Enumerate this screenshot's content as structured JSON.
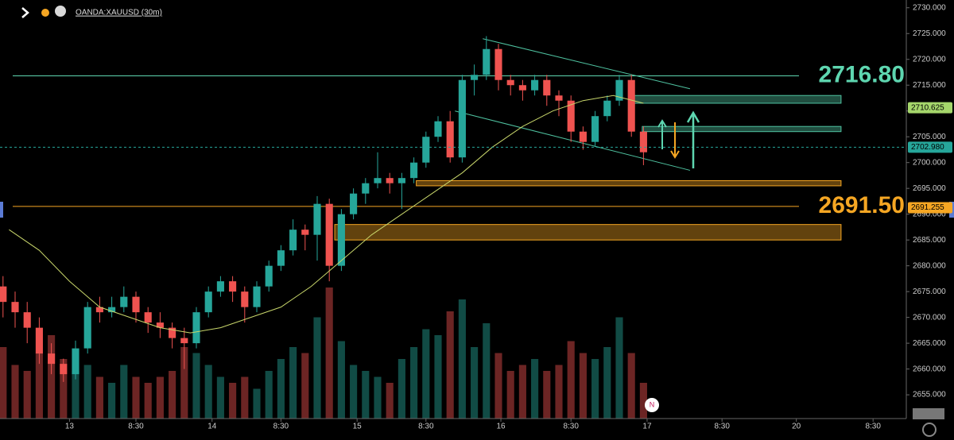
{
  "header": {
    "symbol": "OANDA:XAUUSD (30m)"
  },
  "chart_data": {
    "type": "candlestick",
    "up_color": "#26a69a",
    "down_color": "#ef5350",
    "x": [
      -11,
      -9,
      -7,
      -5,
      -3,
      -1,
      1,
      3,
      5,
      7,
      9,
      11,
      13,
      15,
      17,
      19,
      21,
      23,
      25,
      27,
      29,
      31,
      33,
      35,
      37,
      39,
      41,
      43,
      45,
      47,
      49,
      51,
      53,
      55,
      57,
      59,
      61,
      63,
      65,
      67,
      69,
      71,
      73,
      75,
      77,
      79,
      81,
      83,
      85,
      87,
      89,
      91,
      93,
      95
    ],
    "open": [
      2676,
      2673,
      2671,
      2668,
      2663,
      2661,
      2659,
      2664,
      2672,
      2671,
      2672,
      2674,
      2671,
      2669,
      2668,
      2666,
      2665,
      2671,
      2675,
      2677,
      2675,
      2672,
      2676,
      2680,
      2683,
      2687,
      2686,
      2692,
      2680,
      2690,
      2694,
      2696,
      2697,
      2696,
      2697,
      2700,
      2705,
      2708,
      2701,
      2716,
      2717,
      2722,
      2716,
      2715,
      2714,
      2716,
      2713,
      2712,
      2706,
      2704,
      2709,
      2712,
      2716,
      2706
    ],
    "high": [
      2678,
      2675,
      2673,
      2670,
      2665,
      2662,
      2665.5,
      2673,
      2674,
      2674,
      2676,
      2675,
      2672,
      2671,
      2669,
      2668,
      2672,
      2676,
      2678,
      2678,
      2676,
      2677,
      2681,
      2684,
      2689,
      2688,
      2693.5,
      2693,
      2691,
      2695,
      2697,
      2702,
      2698,
      2698,
      2701,
      2706,
      2709,
      2710,
      2717,
      2719,
      2724.5,
      2723,
      2717,
      2716,
      2717,
      2717,
      2714,
      2713,
      2707,
      2710,
      2713,
      2717,
      2717,
      2707
    ],
    "low": [
      2670,
      2668,
      2665,
      2661,
      2659,
      2657.5,
      2658,
      2663,
      2669,
      2670,
      2671,
      2669,
      2667,
      2666,
      2664,
      2660,
      2664,
      2670,
      2674,
      2673,
      2669,
      2671,
      2675,
      2679,
      2682,
      2683,
      2681,
      2677,
      2679,
      2689,
      2692,
      2695,
      2694,
      2691,
      2696,
      2699,
      2704,
      2700,
      2700,
      2713,
      2716,
      2714,
      2713,
      2712,
      2713,
      2711,
      2709,
      2704,
      2702.5,
      2703,
      2708,
      2711,
      2705,
      2699.5
    ],
    "close": [
      2673,
      2671,
      2668,
      2663,
      2661,
      2659,
      2664,
      2672,
      2671,
      2672,
      2674,
      2671,
      2669,
      2668,
      2666,
      2665,
      2671,
      2675,
      2677,
      2675,
      2672,
      2676,
      2680,
      2683,
      2687,
      2686,
      2692,
      2680,
      2690,
      2694,
      2696,
      2697,
      2696,
      2697,
      2700,
      2705,
      2708,
      2701,
      2716,
      2717,
      2722,
      2716,
      2715,
      2714,
      2716,
      2713,
      2712,
      2706,
      2704,
      2709,
      2712,
      2716,
      2706,
      2702
    ],
    "volume": [
      60,
      45,
      40,
      55,
      70,
      50,
      40,
      45,
      35,
      30,
      45,
      35,
      30,
      35,
      40,
      60,
      55,
      45,
      35,
      30,
      35,
      25,
      40,
      50,
      60,
      55,
      85,
      110,
      65,
      45,
      40,
      35,
      30,
      50,
      60,
      75,
      70,
      90,
      100,
      60,
      80,
      55,
      40,
      45,
      50,
      40,
      45,
      65,
      55,
      50,
      60,
      85,
      55,
      30
    ],
    "ma": {
      "color": "#c8d66b",
      "x": [
        -10,
        -5,
        0,
        5,
        10,
        15,
        20,
        25,
        30,
        35,
        40,
        45,
        50,
        55,
        60,
        65,
        70,
        75,
        80,
        85,
        90,
        95
      ],
      "values": [
        2687,
        2683,
        2677,
        2672,
        2670,
        2668,
        2667,
        2668,
        2670,
        2672,
        2676,
        2681,
        2686,
        2690,
        2694,
        2698,
        2703,
        2707,
        2710,
        2712,
        2713,
        2711.5
      ]
    },
    "trendlines": [
      {
        "color": "#4fc3a1",
        "x": [
          68.4,
          102.7
        ],
        "y": [
          2724,
          2714.3
        ]
      },
      {
        "color": "#4fc3a1",
        "x": [
          63.8,
          102.7
        ],
        "y": [
          2710,
          2698.5
        ]
      }
    ],
    "zones": [
      {
        "x": [
          93.4,
          127.7
        ],
        "y": [
          2711.5,
          2713
        ],
        "color": "#4fc3a1"
      },
      {
        "x": [
          94.8,
          127.7
        ],
        "y": [
          2706,
          2707
        ],
        "color": "#4fc3a1"
      },
      {
        "x": [
          57.4,
          127.7
        ],
        "y": [
          2695.5,
          2696.5
        ],
        "color": "#f5a623"
      },
      {
        "x": [
          43.9,
          127.7
        ],
        "y": [
          2685,
          2688
        ],
        "color": "#f5a623"
      }
    ],
    "levels": [
      {
        "value": 2716.8,
        "label": "2716.80",
        "color": "#5ed6b0"
      },
      {
        "value": 2691.5,
        "label": "2691.50",
        "color": "#f5a623"
      }
    ],
    "price_tags": [
      {
        "value": 2710.625,
        "label": "2710.625",
        "color": "#a5d66b"
      },
      {
        "value": 2702.98,
        "label": "2702.980",
        "color": "#26a69a"
      },
      {
        "value": 2691.255,
        "label": "2691.255",
        "color": "#f5a623"
      }
    ],
    "xlim": [
      -11.5,
      138.5
    ],
    "ylim": [
      2650.4,
      2731.5
    ],
    "xticks": [
      {
        "value": 0,
        "label": "13"
      },
      {
        "value": 11,
        "label": "8:30"
      },
      {
        "value": 23.6,
        "label": "14"
      },
      {
        "value": 35,
        "label": "8:30"
      },
      {
        "value": 47.6,
        "label": "15"
      },
      {
        "value": 59,
        "label": "8:30"
      },
      {
        "value": 71.4,
        "label": "16"
      },
      {
        "value": 83,
        "label": "8:30"
      },
      {
        "value": 95.6,
        "label": "17"
      },
      {
        "value": 108,
        "label": "8:30"
      },
      {
        "value": 120.3,
        "label": "20"
      },
      {
        "value": 133,
        "label": "8:30"
      }
    ],
    "yticks": [
      {
        "value": 2655,
        "label": "2655.000"
      },
      {
        "value": 2660,
        "label": "2660.000"
      },
      {
        "value": 2665,
        "label": "2665.000"
      },
      {
        "value": 2670,
        "label": "2670.000"
      },
      {
        "value": 2675,
        "label": "2675.000"
      },
      {
        "value": 2680,
        "label": "2680.000"
      },
      {
        "value": 2685,
        "label": "2685.000"
      },
      {
        "value": 2690,
        "label": "2690.000"
      },
      {
        "value": 2695,
        "label": "2695.000"
      },
      {
        "value": 2700,
        "label": "2700.000"
      },
      {
        "value": 2705,
        "label": "2705.000"
      },
      {
        "value": 2710,
        "label": "2710.000"
      },
      {
        "value": 2715,
        "label": "2715.000"
      },
      {
        "value": 2720,
        "label": "2720.000"
      },
      {
        "value": 2725,
        "label": "2725.000"
      },
      {
        "value": 2730,
        "label": "2730.000"
      }
    ]
  }
}
